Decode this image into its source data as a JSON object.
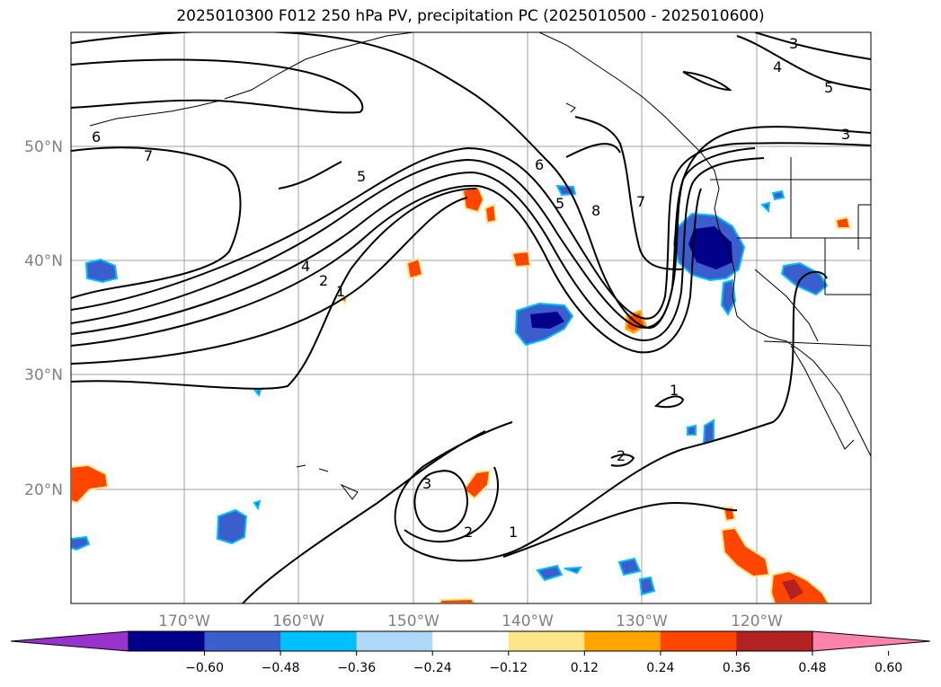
{
  "title": "2025010300 F012 250 hPa PV, precipitation PC (2025010500 - 2025010600)",
  "map": {
    "lat_labels": [
      "50°N",
      "40°N",
      "30°N",
      "20°N"
    ],
    "lon_labels": [
      "170°W",
      "160°W",
      "150°W",
      "140°W",
      "130°W",
      "120°W"
    ],
    "contour_labels": [
      "6",
      "7",
      "5",
      "4",
      "2",
      "1",
      "6",
      "5",
      "8",
      "7",
      "3",
      "4",
      "5",
      "3",
      "1",
      "2",
      "3",
      "2",
      "1"
    ],
    "contour_color": "#000000",
    "coastline_color": "#000000",
    "gridline_color": "#a0a0a0"
  },
  "colorbar": {
    "ticks": [
      "−0.60",
      "−0.48",
      "−0.36",
      "−0.24",
      "−0.12",
      "0.12",
      "0.24",
      "0.36",
      "0.48",
      "0.60"
    ],
    "colors": [
      "#9932cc",
      "#00008b",
      "#3a5fcd",
      "#00bfff",
      "#add8f8",
      "#ffffff",
      "#fde68a",
      "#ffa500",
      "#ff4500",
      "#b22222",
      "#ff82ab"
    ]
  }
}
